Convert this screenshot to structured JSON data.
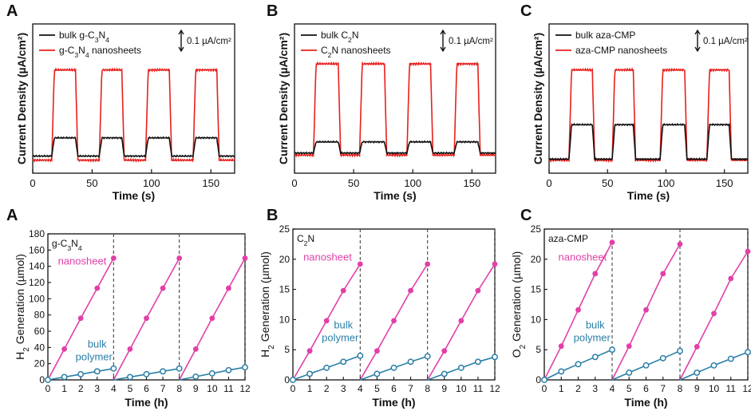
{
  "figure": {
    "panels": [
      {
        "letter": "A",
        "type": "line",
        "xlabel": "Time (s)",
        "ylabel": "Current Density (µA/cm²)",
        "xlim": [
          0,
          170
        ],
        "xticks": [
          0,
          50,
          100,
          150
        ],
        "scale_label": "0.1 µA/cm²",
        "legend": [
          {
            "main": "bulk g-C",
            "sub1": "3",
            "mid": "N",
            "sub2": "4",
            "tail": ""
          },
          {
            "main": "g-C",
            "sub1": "3",
            "mid": "N",
            "sub2": "4",
            "tail": " nanosheets"
          }
        ],
        "on_off": [
          [
            16,
            36
          ],
          [
            56,
            75
          ],
          [
            95,
            115
          ],
          [
            135,
            155
          ]
        ],
        "bulk_base": 0.09,
        "bulk_on": 0.27,
        "nano_base": 0.05,
        "nano_on": 0.94
      },
      {
        "letter": "B",
        "type": "line",
        "xlabel": "Time (s)",
        "ylabel": "Current Density (µA/cm²)",
        "xlim": [
          0,
          170
        ],
        "xticks": [
          0,
          50,
          100,
          150
        ],
        "scale_label": "0.1 µA/cm²",
        "legend": [
          {
            "main": "bulk C",
            "sub1": "2",
            "mid": "N",
            "sub2": "",
            "tail": ""
          },
          {
            "main": "C",
            "sub1": "2",
            "mid": "N",
            "sub2": "",
            "tail": " nanosheets"
          }
        ],
        "on_off": [
          [
            16,
            37
          ],
          [
            55,
            76
          ],
          [
            95,
            115
          ],
          [
            135,
            155
          ]
        ],
        "bulk_base": 0.12,
        "bulk_on": 0.23,
        "nano_base": 0.1,
        "nano_on": 1.0
      },
      {
        "letter": "C",
        "type": "line",
        "xlabel": "Time (s)",
        "ylabel": "Current Density (µA/cm²)",
        "xlim": [
          0,
          170
        ],
        "xticks": [
          0,
          50,
          100,
          150
        ],
        "scale_label": "0.1 µA/cm²",
        "legend": [
          {
            "main": "bulk aza-CMP",
            "sub1": "",
            "mid": "",
            "sub2": "",
            "tail": ""
          },
          {
            "main": "aza-CMP nanosheets",
            "sub1": "",
            "mid": "",
            "sub2": "",
            "tail": ""
          }
        ],
        "on_off": [
          [
            17,
            37
          ],
          [
            54,
            72
          ],
          [
            95,
            116
          ],
          [
            135,
            154
          ]
        ],
        "bulk_base": 0.06,
        "bulk_on": 0.4,
        "nano_base": 0.05,
        "nano_on": 0.94
      }
    ]
  },
  "chart_data": [
    {
      "type": "line",
      "title": "A",
      "xlabel": "Time (s)",
      "ylabel": "Current Density (µA/cm²)",
      "x_range": [
        0,
        170
      ],
      "series": [
        {
          "name": "bulk g-C3N4",
          "color": "#000000"
        },
        {
          "name": "g-C3N4 nanosheets",
          "color": "#e8201c"
        }
      ],
      "light_on_intervals_s": [
        [
          16,
          36
        ],
        [
          56,
          75
        ],
        [
          95,
          115
        ],
        [
          135,
          155
        ]
      ],
      "scale_bar": "0.1 µA/cm²"
    },
    {
      "type": "line",
      "title": "B",
      "xlabel": "Time (s)",
      "ylabel": "Current Density (µA/cm²)",
      "x_range": [
        0,
        170
      ],
      "series": [
        {
          "name": "bulk C2N",
          "color": "#000000"
        },
        {
          "name": "C2N nanosheets",
          "color": "#e8201c"
        }
      ],
      "light_on_intervals_s": [
        [
          16,
          37
        ],
        [
          55,
          76
        ],
        [
          95,
          115
        ],
        [
          135,
          155
        ]
      ],
      "scale_bar": "0.1 µA/cm²"
    },
    {
      "type": "line",
      "title": "C",
      "xlabel": "Time (s)",
      "ylabel": "Current Density (µA/cm²)",
      "x_range": [
        0,
        170
      ],
      "series": [
        {
          "name": "bulk aza-CMP",
          "color": "#000000"
        },
        {
          "name": "aza-CMP nanosheets",
          "color": "#e8201c"
        }
      ],
      "light_on_intervals_s": [
        [
          17,
          37
        ],
        [
          54,
          72
        ],
        [
          95,
          116
        ],
        [
          135,
          154
        ]
      ],
      "scale_bar": "0.1 µA/cm²"
    },
    {
      "type": "line",
      "title": "A",
      "sample_label": {
        "main": "g-C",
        "sub1": "3",
        "mid": "N",
        "sub2": "4"
      },
      "xlabel": "Time (h)",
      "ylabel": {
        "pre": "H",
        "sub": "2",
        "post": " Generation (µmol)"
      },
      "xlim": [
        0,
        12
      ],
      "xticks": [
        0,
        1,
        2,
        3,
        4,
        5,
        6,
        7,
        8,
        9,
        10,
        11,
        12
      ],
      "ylim": [
        0,
        180
      ],
      "yticks": [
        0,
        20,
        40,
        60,
        80,
        100,
        120,
        140,
        160,
        180
      ],
      "cycle_ends": [
        4,
        8,
        12
      ],
      "annot": {
        "nano": "nanosheet",
        "bulk1": "bulk",
        "bulk2": "polymer"
      },
      "annot_pos": {
        "nano": [
          1.0,
          0.79
        ],
        "bulk": [
          3.0,
          0.22
        ]
      },
      "series": [
        {
          "name": "nanosheet",
          "color": "#e23fa8",
          "x": [
            0,
            1,
            2,
            3,
            4,
            5,
            6,
            7,
            8,
            9,
            10,
            11,
            12
          ],
          "y": [
            0,
            38,
            76,
            113,
            150,
            38,
            76,
            113,
            150,
            38,
            76,
            113,
            150
          ]
        },
        {
          "name": "bulk polymer",
          "color": "#2a7fa8",
          "x": [
            0,
            1,
            2,
            3,
            4,
            5,
            6,
            7,
            8,
            9,
            10,
            11,
            12
          ],
          "y": [
            0,
            3.5,
            7,
            10.5,
            14,
            3.5,
            7,
            10.5,
            14,
            4,
            8,
            12,
            15.5
          ]
        }
      ]
    },
    {
      "type": "line",
      "title": "B",
      "sample_label": {
        "main": "C",
        "sub1": "2",
        "mid": "N",
        "sub2": ""
      },
      "xlabel": "Time (h)",
      "ylabel": {
        "pre": "H",
        "sub": "2",
        "post": " Generation (µmol)"
      },
      "xlim": [
        0,
        12
      ],
      "xticks": [
        0,
        1,
        2,
        3,
        4,
        5,
        6,
        7,
        8,
        9,
        10,
        11,
        12
      ],
      "ylim": [
        0,
        25
      ],
      "yticks": [
        0,
        5,
        10,
        15,
        20,
        25
      ],
      "cycle_ends": [
        4,
        8,
        12
      ],
      "annot": {
        "nano": "nanosheet",
        "bulk1": "bulk",
        "bulk2": "polymer"
      },
      "annot_pos": {
        "nano": [
          1.0,
          0.79
        ],
        "bulk": [
          3.0,
          0.34
        ]
      },
      "series": [
        {
          "name": "nanosheet",
          "color": "#e23fa8",
          "x": [
            0,
            1,
            2,
            3,
            4,
            5,
            6,
            7,
            8,
            9,
            10,
            11,
            12
          ],
          "y": [
            0,
            4.8,
            9.8,
            14.8,
            19.2,
            4.8,
            9.8,
            14.8,
            19.2,
            4.8,
            9.8,
            14.8,
            19.2
          ]
        },
        {
          "name": "bulk polymer",
          "color": "#2a7fa8",
          "x": [
            0,
            1,
            2,
            3,
            4,
            5,
            6,
            7,
            8,
            9,
            10,
            11,
            12
          ],
          "y": [
            0,
            1,
            2,
            3,
            4,
            1,
            2,
            3,
            3.9,
            1,
            2,
            3,
            3.8
          ]
        }
      ]
    },
    {
      "type": "line",
      "title": "C",
      "sample_label": {
        "main": "aza-CMP",
        "sub1": "",
        "mid": "",
        "sub2": ""
      },
      "xlabel": "Time (h)",
      "ylabel": {
        "pre": "O",
        "sub": "2",
        "post": " Generation (µmol)"
      },
      "xlim": [
        0,
        12
      ],
      "xticks": [
        0,
        1,
        2,
        3,
        4,
        5,
        6,
        7,
        8,
        9,
        10,
        11,
        12
      ],
      "ylim": [
        0,
        25
      ],
      "yticks": [
        0,
        5,
        10,
        15,
        20,
        25
      ],
      "cycle_ends": [
        4,
        8,
        12
      ],
      "annot": {
        "nano": "nanosheet",
        "bulk1": "bulk",
        "bulk2": "polymer"
      },
      "annot_pos": {
        "nano": [
          1.2,
          0.79
        ],
        "bulk": [
          3.0,
          0.34
        ]
      },
      "series": [
        {
          "name": "nanosheet",
          "color": "#e23fa8",
          "x": [
            0,
            1,
            2,
            3,
            4,
            5,
            6,
            7,
            8,
            9,
            10,
            11,
            12
          ],
          "y": [
            0,
            5.6,
            11.6,
            17.6,
            22.8,
            5.6,
            11.6,
            17.6,
            22.5,
            5.5,
            11,
            16.8,
            21.3
          ]
        },
        {
          "name": "bulk polymer",
          "color": "#2a7fa8",
          "x": [
            0,
            1,
            2,
            3,
            4,
            5,
            6,
            7,
            8,
            9,
            10,
            11,
            12
          ],
          "y": [
            0,
            1.4,
            2.6,
            3.8,
            5,
            1.2,
            2.4,
            3.6,
            4.8,
            1.2,
            2.4,
            3.5,
            4.6
          ]
        }
      ]
    }
  ]
}
